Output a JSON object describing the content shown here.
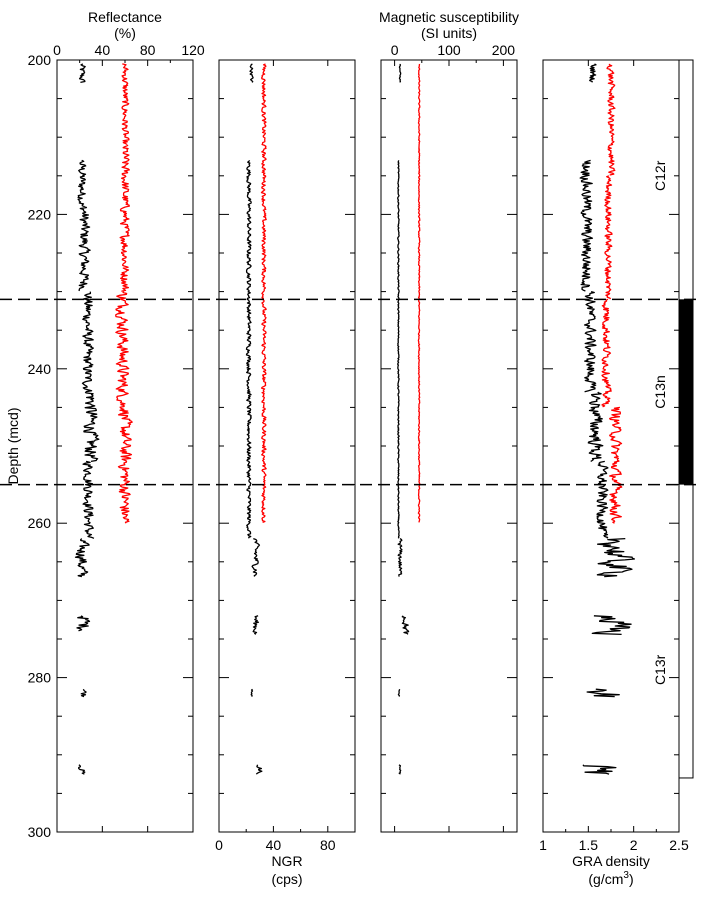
{
  "chart_data": [
    {
      "type": "line",
      "panel": "reflectance",
      "title": "Reflectance",
      "title_unit": "(%)",
      "xlabel_position": "top",
      "xlim": [
        0,
        120
      ],
      "xticks": [
        0,
        40,
        80,
        120
      ],
      "ylabel": "Depth (mcd)",
      "ylim": [
        200,
        300
      ],
      "yticks": [
        200,
        220,
        240,
        260,
        280,
        300
      ],
      "series": [
        {
          "color": "#000000",
          "segments": [
            {
              "depth_range": [
                200.5,
                203
              ],
              "mean": 22,
              "jitter": 4
            },
            {
              "depth_range": [
                213,
                219
              ],
              "mean": 22,
              "jitter": 5
            },
            {
              "depth_range": [
                219,
                230
              ],
              "mean": 24,
              "jitter": 6
            },
            {
              "depth_range": [
                230,
                243
              ],
              "mean": 27,
              "jitter": 6
            },
            {
              "depth_range": [
                243,
                252
              ],
              "mean": 30,
              "jitter": 8
            },
            {
              "depth_range": [
                252,
                262
              ],
              "mean": 28,
              "jitter": 6
            },
            {
              "depth_range": [
                262,
                267
              ],
              "mean": 22,
              "jitter": 7
            },
            {
              "depth_range": [
                272,
                274
              ],
              "mean": 24,
              "jitter": 8
            },
            {
              "depth_range": [
                281.5,
                282.5
              ],
              "mean": 24,
              "jitter": 4
            },
            {
              "depth_range": [
                291.3,
                292.5
              ],
              "mean": 22,
              "jitter": 4
            }
          ]
        },
        {
          "color": "#ff0000",
          "segments": [
            {
              "depth_range": [
                200.5,
                211
              ],
              "mean": 60,
              "jitter": 4
            },
            {
              "depth_range": [
                211,
                230
              ],
              "mean": 60,
              "jitter": 5
            },
            {
              "depth_range": [
                230,
                245
              ],
              "mean": 58,
              "jitter": 7
            },
            {
              "depth_range": [
                245,
                260
              ],
              "mean": 60,
              "jitter": 7
            }
          ]
        }
      ]
    },
    {
      "type": "line",
      "panel": "ngr",
      "xlabel": "NGR",
      "xlabel_unit": "(cps)",
      "xlabel_position": "bottom",
      "xlim": [
        0,
        100
      ],
      "xticks": [
        0,
        40,
        80
      ],
      "ylim": [
        200,
        300
      ],
      "series": [
        {
          "color": "#000000",
          "segments": [
            {
              "depth_range": [
                200.5,
                203
              ],
              "mean": 24,
              "jitter": 1.5
            },
            {
              "depth_range": [
                213,
                262
              ],
              "mean": 22,
              "jitter": 2
            },
            {
              "depth_range": [
                262,
                267
              ],
              "mean": 27,
              "jitter": 3
            },
            {
              "depth_range": [
                272,
                274.5
              ],
              "mean": 27,
              "jitter": 3
            },
            {
              "depth_range": [
                281.5,
                282.5
              ],
              "mean": 24,
              "jitter": 1
            },
            {
              "depth_range": [
                291.3,
                292.5
              ],
              "mean": 30,
              "jitter": 3
            }
          ]
        },
        {
          "color": "#ff0000",
          "segments": [
            {
              "depth_range": [
                200.5,
                260
              ],
              "mean": 33,
              "jitter": 2
            }
          ]
        }
      ]
    },
    {
      "type": "line",
      "panel": "magnetic_susceptibility",
      "title": "Magnetic susceptibility",
      "title_unit": "(SI units)",
      "xlabel_position": "top",
      "xlim": [
        -25,
        225
      ],
      "xticks": [
        0,
        100,
        200
      ],
      "ylim": [
        200,
        300
      ],
      "series": [
        {
          "color": "#000000",
          "segments": [
            {
              "depth_range": [
                200.5,
                203
              ],
              "mean": 10,
              "jitter": 1.5
            },
            {
              "depth_range": [
                213,
                262
              ],
              "mean": 7,
              "jitter": 1.5
            },
            {
              "depth_range": [
                262,
                267
              ],
              "mean": 10,
              "jitter": 5
            },
            {
              "depth_range": [
                272,
                274.5
              ],
              "mean": 20,
              "jitter": 8
            },
            {
              "depth_range": [
                281.5,
                282.5
              ],
              "mean": 8,
              "jitter": 2
            },
            {
              "depth_range": [
                291.3,
                292.5
              ],
              "mean": 10,
              "jitter": 3
            }
          ]
        },
        {
          "color": "#ff0000",
          "segments": [
            {
              "depth_range": [
                200.5,
                260
              ],
              "mean": 45,
              "jitter": 1.5
            }
          ]
        }
      ]
    },
    {
      "type": "line",
      "panel": "gra_density",
      "xlabel": "GRA density",
      "xlabel_unit_base": "(g/cm",
      "xlabel_unit_sup": "3",
      "xlabel_unit_end": ")",
      "xlabel_position": "bottom",
      "xlim": [
        1,
        2.5
      ],
      "xticks": [
        "1",
        "1.5",
        "2",
        "2.5"
      ],
      "ylim": [
        200,
        300
      ],
      "series": [
        {
          "color": "#000000",
          "segments": [
            {
              "depth_range": [
                200.5,
                203
              ],
              "mean": 1.55,
              "jitter": 0.05
            },
            {
              "depth_range": [
                213,
                230
              ],
              "mean": 1.48,
              "jitter": 0.08
            },
            {
              "depth_range": [
                230,
                243
              ],
              "mean": 1.52,
              "jitter": 0.08
            },
            {
              "depth_range": [
                243,
                252
              ],
              "mean": 1.58,
              "jitter": 0.1
            },
            {
              "depth_range": [
                252,
                262
              ],
              "mean": 1.65,
              "jitter": 0.08
            },
            {
              "depth_range": [
                262,
                267
              ],
              "mean": 1.8,
              "jitter": 0.25
            },
            {
              "depth_range": [
                272,
                274.5
              ],
              "mean": 1.75,
              "jitter": 0.3
            },
            {
              "depth_range": [
                281.5,
                282.5
              ],
              "mean": 1.65,
              "jitter": 0.3
            },
            {
              "depth_range": [
                291.3,
                292.5
              ],
              "mean": 1.6,
              "jitter": 0.3
            }
          ]
        },
        {
          "color": "#ff0000",
          "segments": [
            {
              "depth_range": [
                200.5,
                215
              ],
              "mean": 1.75,
              "jitter": 0.05
            },
            {
              "depth_range": [
                215,
                231
              ],
              "mean": 1.72,
              "jitter": 0.05
            },
            {
              "depth_range": [
                231,
                245
              ],
              "mean": 1.7,
              "jitter": 0.06
            },
            {
              "depth_range": [
                245,
                260
              ],
              "mean": 1.8,
              "jitter": 0.08
            }
          ]
        }
      ]
    }
  ],
  "boundaries": [
    231,
    255
  ],
  "magnetostratigraphy": {
    "column_range": [
      200,
      293
    ],
    "chrons": [
      {
        "name": "C12r",
        "polarity": "reversed",
        "top": 200,
        "bottom": 231,
        "label_depth": 215
      },
      {
        "name": "C13n",
        "polarity": "normal",
        "top": 231,
        "bottom": 255,
        "label_depth": 243
      },
      {
        "name": "C13r",
        "polarity": "reversed",
        "top": 255,
        "bottom": 293,
        "label_depth": 279
      }
    ]
  },
  "colors": {
    "low_res": "#000000",
    "high_res": "#ff0000",
    "normal_polarity": "#000000"
  }
}
